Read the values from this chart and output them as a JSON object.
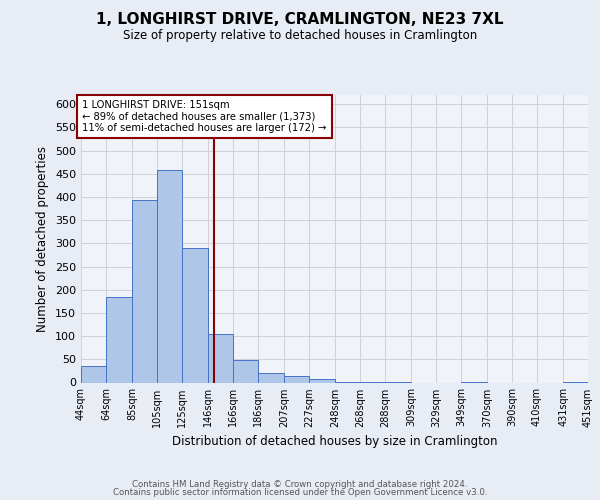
{
  "title": "1, LONGHIRST DRIVE, CRAMLINGTON, NE23 7XL",
  "subtitle": "Size of property relative to detached houses in Cramlington",
  "xlabel": "Distribution of detached houses by size in Cramlington",
  "ylabel": "Number of detached properties",
  "bar_values": [
    35,
    185,
    393,
    458,
    290,
    105,
    48,
    20,
    15,
    8,
    2,
    1,
    1,
    0,
    0,
    1,
    0,
    0,
    0,
    1
  ],
  "bin_edges": [
    44,
    64,
    85,
    105,
    125,
    146,
    166,
    186,
    207,
    227,
    248,
    268,
    288,
    309,
    329,
    349,
    370,
    390,
    410,
    431,
    451
  ],
  "bin_labels": [
    "44sqm",
    "64sqm",
    "85sqm",
    "105sqm",
    "125sqm",
    "146sqm",
    "166sqm",
    "186sqm",
    "207sqm",
    "227sqm",
    "248sqm",
    "268sqm",
    "288sqm",
    "309sqm",
    "329sqm",
    "349sqm",
    "370sqm",
    "390sqm",
    "410sqm",
    "431sqm",
    "451sqm"
  ],
  "property_sqm": 151,
  "property_label": "1 LONGHIRST DRIVE: 151sqm",
  "annotation_line1": "← 89% of detached houses are smaller (1,373)",
  "annotation_line2": "11% of semi-detached houses are larger (172) →",
  "bar_color": "#aec6e8",
  "bar_edge_color": "#4472c4",
  "redline_color": "#8b0000",
  "annotation_box_color": "#ffffff",
  "annotation_box_edge": "#8b0000",
  "bg_color": "#e8edf5",
  "plot_bg_color": "#f0f4fa",
  "grid_color": "#cccccc",
  "ylim": [
    0,
    620
  ],
  "yticks": [
    0,
    50,
    100,
    150,
    200,
    250,
    300,
    350,
    400,
    450,
    500,
    550,
    600
  ],
  "footer1": "Contains HM Land Registry data © Crown copyright and database right 2024.",
  "footer2": "Contains public sector information licensed under the Open Government Licence v3.0."
}
